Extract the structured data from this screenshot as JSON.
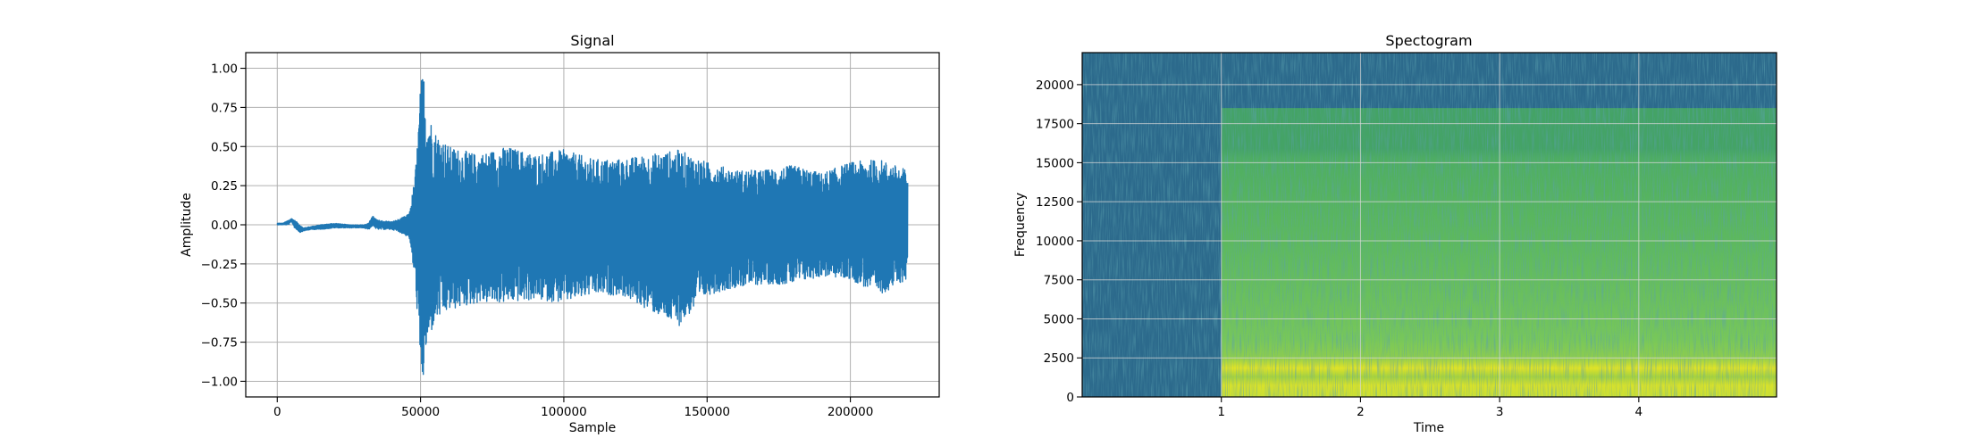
{
  "chart_data": [
    {
      "type": "line",
      "title": "Signal",
      "xlabel": "Sample",
      "ylabel": "Amplitude",
      "xlim": [
        -11000,
        231000
      ],
      "ylim": [
        -1.1,
        1.1
      ],
      "x_ticks": [
        0,
        50000,
        100000,
        150000,
        200000
      ],
      "y_ticks": [
        -1.0,
        -0.75,
        -0.5,
        -0.25,
        0.0,
        0.25,
        0.5,
        0.75,
        1.0
      ],
      "x_tick_labels": [
        "0",
        "50000",
        "100000",
        "150000",
        "200000"
      ],
      "y_tick_labels": [
        "−1.00",
        "−0.75",
        "−0.50",
        "−0.25",
        "0.00",
        "0.25",
        "0.50",
        "0.75",
        "1.00"
      ],
      "grid": true,
      "color": "#1f77b4",
      "series": [
        {
          "x": [
            0,
            2000,
            4000,
            5000,
            6000,
            8000,
            9000,
            12000,
            15000,
            20000,
            25000,
            30000,
            32000,
            33000,
            35000,
            40000,
            43000,
            46000,
            48000,
            49000,
            50000,
            51000,
            52000,
            55000,
            60000,
            70000,
            80000,
            90000,
            100000,
            110000,
            120000,
            130000,
            140000,
            150000,
            160000,
            170000,
            180000,
            190000,
            200000,
            210000,
            220000
          ],
          "upper": [
            0.01,
            0.01,
            0.03,
            0.04,
            0.03,
            0.0,
            -0.02,
            -0.01,
            0.0,
            0.01,
            0.0,
            0.0,
            0.01,
            0.06,
            0.03,
            0.02,
            0.04,
            0.07,
            0.3,
            0.55,
            0.9,
            1.0,
            0.75,
            0.6,
            0.5,
            0.45,
            0.5,
            0.45,
            0.48,
            0.42,
            0.42,
            0.45,
            0.48,
            0.4,
            0.35,
            0.35,
            0.38,
            0.33,
            0.4,
            0.42,
            0.35
          ],
          "lower": [
            0.0,
            0.0,
            0.0,
            0.02,
            -0.02,
            -0.05,
            -0.04,
            -0.03,
            -0.03,
            -0.02,
            -0.02,
            -0.02,
            -0.03,
            -0.01,
            -0.03,
            -0.03,
            -0.05,
            -0.08,
            -0.35,
            -0.6,
            -1.0,
            -1.0,
            -0.8,
            -0.62,
            -0.55,
            -0.5,
            -0.5,
            -0.48,
            -0.5,
            -0.45,
            -0.45,
            -0.55,
            -0.65,
            -0.45,
            -0.4,
            -0.38,
            -0.38,
            -0.33,
            -0.35,
            -0.45,
            -0.35
          ]
        }
      ]
    },
    {
      "type": "heatmap",
      "title": "Spectogram",
      "xlabel": "Time",
      "ylabel": "Frequency",
      "xlim": [
        0,
        4.99
      ],
      "ylim": [
        0,
        22050
      ],
      "x_ticks": [
        1,
        2,
        3,
        4
      ],
      "y_ticks": [
        0,
        2500,
        5000,
        7500,
        10000,
        12500,
        15000,
        17500,
        20000
      ],
      "x_tick_labels": [
        "1",
        "2",
        "3",
        "4"
      ],
      "y_tick_labels": [
        "0",
        "2500",
        "5000",
        "7500",
        "10000",
        "12500",
        "15000",
        "17500",
        "20000"
      ],
      "grid": true,
      "colormap": "viridis",
      "onset_time": 1.0,
      "cutoff_frequency": 18500
    }
  ]
}
